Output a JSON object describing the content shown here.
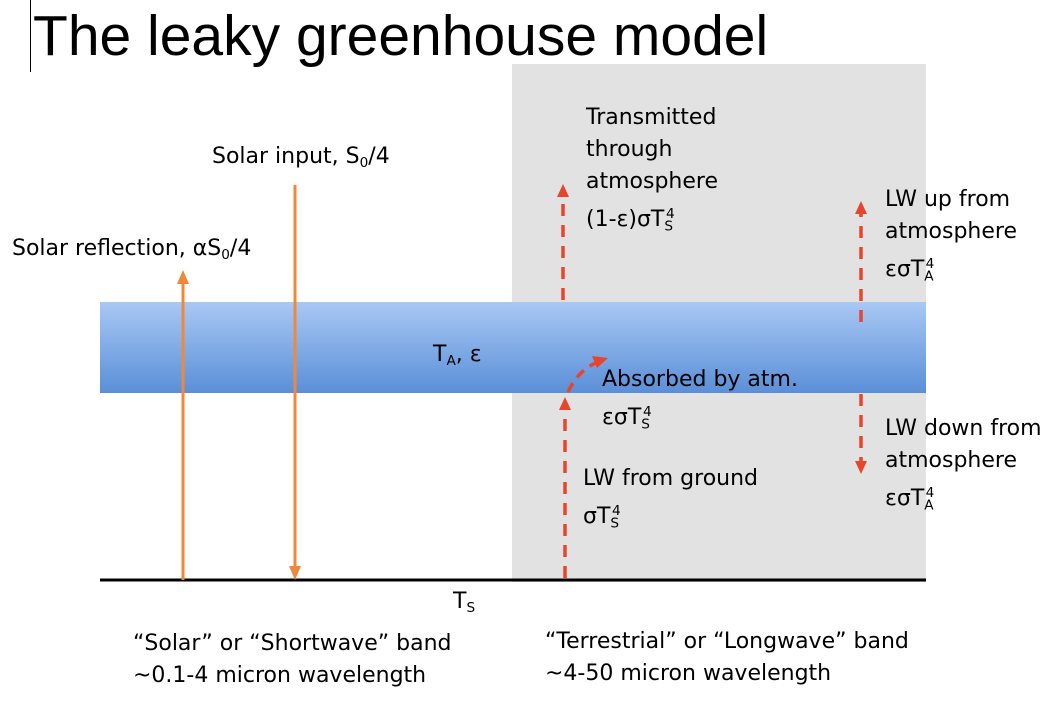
{
  "title": "The leaky greenhouse model",
  "colors": {
    "solar_arrow": "#f0883a",
    "longwave_arrow": "#e8452d",
    "longwave_panel": "#e2e2e2",
    "atmosphere_top": "#a9c8f4",
    "atmosphere_bottom": "#5a8fd8",
    "ground": "#000000"
  },
  "labels": {
    "solar_input": {
      "text": "Solar input, S",
      "sub": "0",
      "after": "/4"
    },
    "solar_reflection": {
      "text": "Solar reflection, αS",
      "sub": "0",
      "after": "/4"
    },
    "atmosphere": {
      "text": "T",
      "sub": "A",
      "after": ", ε"
    },
    "transmitted": {
      "line1": "Transmitted",
      "line2": "through",
      "line3": "atmosphere",
      "line4": "(1-ε)σT",
      "line4_sub": "S",
      "line4_sup": "4"
    },
    "lw_up": {
      "line1": "LW up from",
      "line2": "atmosphere",
      "line3": "εσT",
      "line3_sub": "A",
      "line3_sup": "4"
    },
    "absorbed": {
      "line1": "Absorbed by atm.",
      "line2": "εσT",
      "line2_sub": "S",
      "line2_sup": "4"
    },
    "lw_down": {
      "line1": "LW down from",
      "line2": "atmosphere",
      "line3": "εσT",
      "line3_sub": "A",
      "line3_sup": "4"
    },
    "lw_ground": {
      "line1": "LW from ground",
      "line2": "σT",
      "line2_sub": "S",
      "line2_sup": "4"
    },
    "surface": {
      "text": "T",
      "sub": "S"
    },
    "shortwave_band": {
      "line1": "“Solar” or “Shortwave” band",
      "line2": "~0.1-4 micron wavelength"
    },
    "longwave_band": {
      "line1": "“Terrestrial” or “Longwave” band",
      "line2": "~4-50 micron wavelength"
    }
  }
}
